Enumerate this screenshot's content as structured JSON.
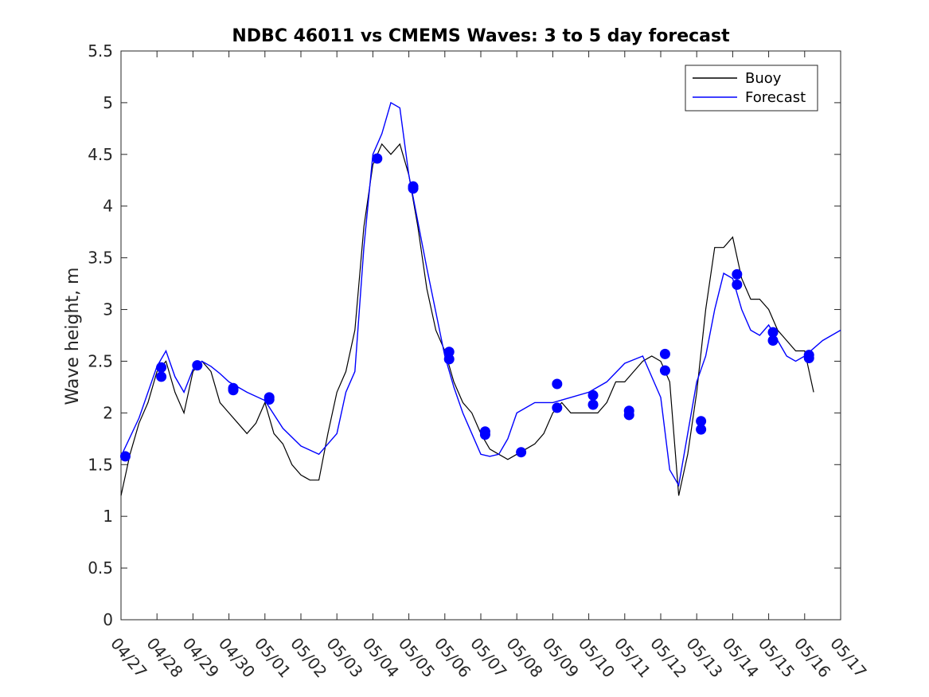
{
  "chart_data": {
    "type": "line",
    "title": "NDBC 46011 vs CMEMS Waves: 3 to 5 day forecast",
    "xlabel": "",
    "ylabel": "Wave height, m",
    "x_tick_labels": [
      "04/27",
      "04/28",
      "04/29",
      "04/30",
      "05/01",
      "05/02",
      "05/03",
      "05/04",
      "05/05",
      "05/06",
      "05/07",
      "05/08",
      "05/09",
      "05/10",
      "05/11",
      "05/12",
      "05/13",
      "05/14",
      "05/15",
      "05/16",
      "05/17"
    ],
    "y_tick_labels": [
      "0",
      "0.5",
      "1",
      "1.5",
      "2",
      "2.5",
      "3",
      "3.5",
      "4",
      "4.5",
      "5",
      "5.5"
    ],
    "xlim": [
      0,
      20
    ],
    "ylim": [
      0,
      5.5
    ],
    "x_unit": "days since 04/27",
    "grid": false,
    "legend_position": "top-right",
    "legend": [
      {
        "label": "Buoy",
        "color": "#000000"
      },
      {
        "label": "Forecast",
        "color": "#0000ff"
      }
    ],
    "series": [
      {
        "name": "Buoy",
        "color": "#000000",
        "x": [
          0,
          0.25,
          0.5,
          0.75,
          1,
          1.25,
          1.5,
          1.75,
          2,
          2.25,
          2.5,
          2.75,
          3,
          3.25,
          3.5,
          3.75,
          4,
          4.25,
          4.5,
          4.75,
          5,
          5.25,
          5.5,
          5.75,
          6,
          6.25,
          6.5,
          6.75,
          7,
          7.25,
          7.5,
          7.75,
          8,
          8.25,
          8.5,
          8.75,
          9,
          9.25,
          9.5,
          9.75,
          10,
          10.25,
          10.5,
          10.75,
          11,
          11.25,
          11.5,
          11.75,
          12,
          12.25,
          12.5,
          12.75,
          13,
          13.25,
          13.5,
          13.75,
          14,
          14.25,
          14.5,
          14.75,
          15,
          15.25,
          15.5,
          15.75,
          16,
          16.25,
          16.5,
          16.75,
          17,
          17.25,
          17.5,
          17.75,
          18,
          18.25,
          18.5,
          18.75,
          19,
          19.25
        ],
        "y": [
          1.2,
          1.6,
          1.9,
          2.1,
          2.4,
          2.5,
          2.2,
          2.0,
          2.4,
          2.5,
          2.4,
          2.1,
          2.0,
          1.9,
          1.8,
          1.9,
          2.1,
          1.8,
          1.7,
          1.5,
          1.4,
          1.35,
          1.35,
          1.8,
          2.2,
          2.4,
          2.8,
          3.8,
          4.4,
          4.6,
          4.5,
          4.6,
          4.3,
          3.8,
          3.2,
          2.8,
          2.6,
          2.3,
          2.1,
          2.0,
          1.8,
          1.65,
          1.6,
          1.55,
          1.6,
          1.65,
          1.7,
          1.8,
          2.0,
          2.1,
          2.0,
          2.0,
          2.0,
          2.0,
          2.1,
          2.3,
          2.3,
          2.4,
          2.5,
          2.55,
          2.5,
          2.3,
          1.2,
          1.6,
          2.2,
          3.0,
          3.6,
          3.6,
          3.7,
          3.3,
          3.1,
          3.1,
          3.0,
          2.8,
          2.7,
          2.6,
          2.6,
          2.2
        ]
      },
      {
        "name": "Forecast",
        "color": "#0000ff",
        "x": [
          0,
          0.5,
          1,
          1.25,
          1.5,
          1.75,
          2,
          2.25,
          2.5,
          2.75,
          3,
          3.5,
          4,
          4.5,
          5,
          5.5,
          6,
          6.25,
          6.5,
          6.75,
          7,
          7.25,
          7.5,
          7.75,
          8,
          8.5,
          9,
          9.25,
          9.5,
          9.75,
          10,
          10.25,
          10.5,
          10.75,
          11,
          11.5,
          12,
          12.5,
          13,
          13.5,
          14,
          14.5,
          15,
          15.25,
          15.5,
          15.75,
          16,
          16.25,
          16.5,
          16.75,
          17,
          17.25,
          17.5,
          17.75,
          18,
          18.25,
          18.5,
          18.75,
          19,
          19.5,
          20
        ],
        "y": [
          1.58,
          1.95,
          2.45,
          2.6,
          2.35,
          2.2,
          2.42,
          2.5,
          2.45,
          2.38,
          2.3,
          2.2,
          2.12,
          1.85,
          1.68,
          1.6,
          1.8,
          2.2,
          2.4,
          3.6,
          4.5,
          4.7,
          5.0,
          4.95,
          4.3,
          3.4,
          2.55,
          2.25,
          2.0,
          1.8,
          1.6,
          1.58,
          1.6,
          1.75,
          2.0,
          2.1,
          2.1,
          2.15,
          2.2,
          2.3,
          2.48,
          2.55,
          2.15,
          1.45,
          1.3,
          1.8,
          2.3,
          2.55,
          3.0,
          3.35,
          3.3,
          3.0,
          2.8,
          2.75,
          2.85,
          2.7,
          2.55,
          2.5,
          2.55,
          2.7,
          2.8
        ]
      }
    ],
    "forecast_markers": [
      {
        "x": 0.12,
        "y": 1.58
      },
      {
        "x": 1.12,
        "y": 2.44
      },
      {
        "x": 1.12,
        "y": 2.35
      },
      {
        "x": 2.12,
        "y": 2.46
      },
      {
        "x": 3.12,
        "y": 2.24
      },
      {
        "x": 3.12,
        "y": 2.22
      },
      {
        "x": 4.12,
        "y": 2.15
      },
      {
        "x": 4.12,
        "y": 2.13
      },
      {
        "x": 7.12,
        "y": 4.46
      },
      {
        "x": 8.12,
        "y": 4.19
      },
      {
        "x": 8.12,
        "y": 4.17
      },
      {
        "x": 9.12,
        "y": 2.59
      },
      {
        "x": 9.12,
        "y": 2.52
      },
      {
        "x": 10.12,
        "y": 1.82
      },
      {
        "x": 10.12,
        "y": 1.79
      },
      {
        "x": 11.12,
        "y": 1.62
      },
      {
        "x": 12.12,
        "y": 2.28
      },
      {
        "x": 12.12,
        "y": 2.05
      },
      {
        "x": 13.12,
        "y": 2.17
      },
      {
        "x": 13.12,
        "y": 2.08
      },
      {
        "x": 14.12,
        "y": 2.02
      },
      {
        "x": 14.12,
        "y": 1.98
      },
      {
        "x": 15.12,
        "y": 2.57
      },
      {
        "x": 15.12,
        "y": 2.41
      },
      {
        "x": 16.12,
        "y": 1.92
      },
      {
        "x": 16.12,
        "y": 1.84
      },
      {
        "x": 17.12,
        "y": 3.34
      },
      {
        "x": 17.12,
        "y": 3.24
      },
      {
        "x": 18.12,
        "y": 2.78
      },
      {
        "x": 18.12,
        "y": 2.7
      },
      {
        "x": 19.12,
        "y": 2.56
      },
      {
        "x": 19.12,
        "y": 2.53
      }
    ]
  }
}
